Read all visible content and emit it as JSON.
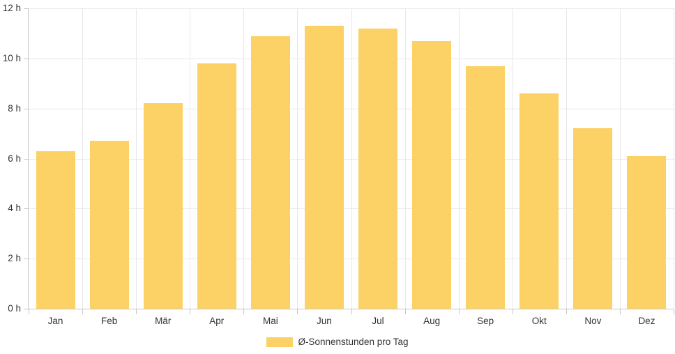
{
  "chart_data": {
    "type": "bar",
    "title": "",
    "xlabel": "",
    "ylabel": "",
    "categories": [
      "Jan",
      "Feb",
      "Mär",
      "Apr",
      "Mai",
      "Jun",
      "Jul",
      "Aug",
      "Sep",
      "Okt",
      "Nov",
      "Dez"
    ],
    "series": [
      {
        "name": "Ø-Sonnenstunden pro Tag",
        "values": [
          6.3,
          6.7,
          8.2,
          9.8,
          10.9,
          11.3,
          11.2,
          10.7,
          9.7,
          8.6,
          7.2,
          6.1
        ]
      }
    ],
    "ylim": [
      0,
      12
    ],
    "ytick_step": 2,
    "ytick_labels": [
      "0 h",
      "2 h",
      "4 h",
      "6 h",
      "8 h",
      "10 h",
      "12 h"
    ],
    "grid": true,
    "legend_position": "bottom-center",
    "bar_color": "#FCD166"
  },
  "colors": {
    "bar": "#FCD166",
    "grid": "#E8E8E8",
    "axis": "#C6C6C6",
    "text": "#333333",
    "background": "#FFFFFF"
  }
}
